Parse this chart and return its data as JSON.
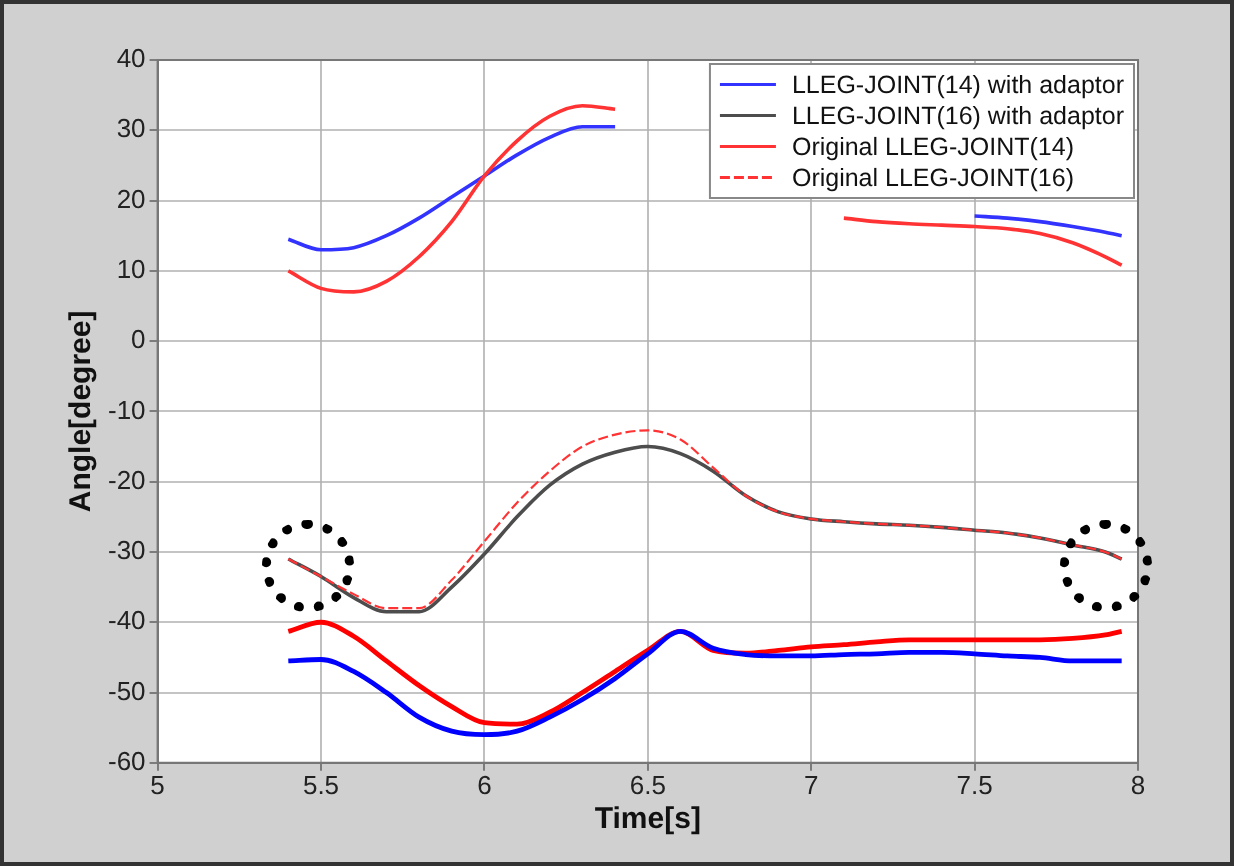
{
  "chart_data": {
    "type": "line",
    "xlabel": "Time[s]",
    "ylabel": "Angle[degree]",
    "x": [
      5.4,
      5.5,
      5.6,
      5.7,
      5.8,
      5.9,
      6.0,
      6.1,
      6.2,
      6.3,
      6.4,
      6.5,
      6.6,
      6.7,
      6.8,
      6.9,
      7.0,
      7.1,
      7.2,
      7.3,
      7.4,
      7.5,
      7.6,
      7.7,
      7.8,
      7.9,
      7.95
    ],
    "xlim": [
      5,
      8
    ],
    "xticks": [
      5,
      5.5,
      6,
      6.5,
      7,
      7.5,
      8
    ],
    "ylim": [
      -60,
      40
    ],
    "yticks": [
      -60,
      -50,
      -40,
      -30,
      -20,
      -10,
      0,
      10,
      20,
      30,
      40
    ],
    "grid": true,
    "legend": "top right",
    "marker": "none",
    "series": [
      {
        "name": "LLEG-JOINT(14) with adaptor",
        "color": "#3333ff",
        "line_style": "solid",
        "values": [
          14.5,
          13,
          13.3,
          15,
          17.5,
          20.5,
          23.5,
          26.5,
          29,
          30.5,
          30.5,
          null,
          null,
          null,
          null,
          null,
          null,
          null,
          null,
          null,
          null,
          17.8,
          17.5,
          17,
          16.3,
          15.5,
          15
        ]
      },
      {
        "name": "LLEG-JOINT(16) with adaptor",
        "color": "#4d4d4d",
        "line_style": "solid",
        "values": [
          -31,
          -33.5,
          -36.5,
          -38.5,
          -38.5,
          -35,
          -30.3,
          -25,
          -20.5,
          -17.5,
          -15.8,
          -15,
          -16,
          -18.5,
          -22,
          -24.3,
          -25.3,
          -25.7,
          -26,
          -26.2,
          -26.5,
          -26.9,
          -27.3,
          -28,
          -29,
          -30,
          -31
        ]
      },
      {
        "name": "Original LLEG-JOINT(14)",
        "color": "#ff3333",
        "line_style": "solid",
        "values": [
          10,
          7.5,
          7,
          8.5,
          12,
          17,
          23.5,
          28.5,
          32,
          33.5,
          33,
          null,
          null,
          null,
          null,
          null,
          null,
          17.5,
          17,
          16.7,
          16.5,
          16.3,
          16,
          15.3,
          14,
          12,
          10.8
        ]
      },
      {
        "name": "Original LLEG-JOINT(16)",
        "color": "#ff3333",
        "line_style": "dashed",
        "values": [
          -31,
          -33.5,
          -36,
          -38,
          -38,
          -34,
          -28.5,
          -23,
          -18.5,
          -15,
          -13.3,
          -12.7,
          -14,
          -18,
          -22,
          -24.3,
          -25.3,
          -25.7,
          -26,
          -26.2,
          -26.5,
          -26.9,
          -27.3,
          -28,
          -29,
          -30,
          -31
        ]
      },
      {
        "color": "#ff0000",
        "line_style": "solid",
        "values": [
          -41.3,
          -40,
          -42,
          -45.5,
          -49,
          -52,
          -54.3,
          -54.5,
          -52.8,
          -50,
          -47,
          -44,
          -41.3,
          -44,
          -44.4,
          -44,
          -43.5,
          -43.2,
          -42.8,
          -42.5,
          -42.5,
          -42.5,
          -42.5,
          -42.5,
          -42.3,
          -41.8,
          -41.3
        ]
      },
      {
        "color": "#0000ff",
        "line_style": "solid",
        "values": [
          -45.5,
          -45.3,
          -47,
          -50,
          -53.5,
          -55.5,
          -56,
          -55.5,
          -53.5,
          -51,
          -48,
          -44.5,
          -41.3,
          -43.7,
          -44.6,
          -44.8,
          -44.8,
          -44.6,
          -44.5,
          -44.3,
          -44.3,
          -44.5,
          -44.8,
          -45,
          -45.5,
          -45.5,
          -45.5
        ]
      }
    ]
  }
}
